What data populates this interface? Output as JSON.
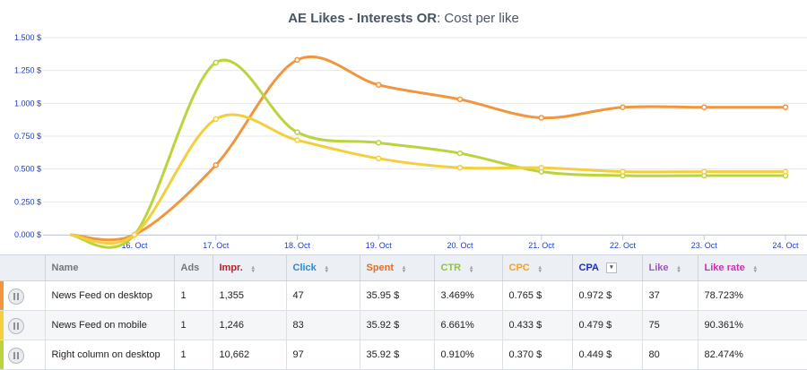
{
  "chart": {
    "title_bold": "AE Likes - Interests OR",
    "title_rest": ": Cost per like"
  },
  "chart_data": {
    "type": "line",
    "title": "AE Likes - Interests OR : Cost per like",
    "x": [
      "16. Oct",
      "17. Oct",
      "18. Oct",
      "19. Oct",
      "20. Oct",
      "21. Oct",
      "22. Oct",
      "23. Oct",
      "24. Oct"
    ],
    "y_ticks": [
      "0.000 $",
      "0.250 $",
      "0.500 $",
      "0.750 $",
      "1.000 $",
      "1.250 $",
      "1.500 $"
    ],
    "ylim": [
      0,
      1.5
    ],
    "grid": true,
    "series": [
      {
        "values": [
          0.0,
          0.53,
          1.33,
          1.14,
          1.03,
          0.89,
          0.97,
          0.97,
          0.97
        ],
        "color": "#f0963e"
      },
      {
        "values": [
          0.0,
          1.31,
          0.78,
          0.7,
          0.62,
          0.48,
          0.45,
          0.45,
          0.45
        ],
        "color": "#b9d43c"
      },
      {
        "values": [
          0.0,
          0.88,
          0.72,
          0.58,
          0.51,
          0.51,
          0.48,
          0.48,
          0.48
        ],
        "color": "#f3cf3e"
      }
    ]
  },
  "table": {
    "headers": [
      {
        "label": "Name",
        "color": "#707780",
        "sort": false
      },
      {
        "label": "Ads",
        "color": "#707780",
        "sort": false
      },
      {
        "label": "Impr.",
        "color": "#b0232a",
        "sort": true
      },
      {
        "label": "Click",
        "color": "#2a8ad8",
        "sort": true
      },
      {
        "label": "Spent",
        "color": "#ee6a22",
        "sort": true
      },
      {
        "label": "CTR",
        "color": "#8fc43a",
        "sort": true
      },
      {
        "label": "CPC",
        "color": "#f3a322",
        "sort": true
      },
      {
        "label": "CPA",
        "color": "#1a2bc8",
        "sort": true,
        "active": true
      },
      {
        "label": "Like",
        "color": "#9b59b6",
        "sort": true
      },
      {
        "label": "Like rate",
        "color": "#cc2fb5",
        "sort": true
      }
    ],
    "rows": [
      {
        "marker_color": "#f0963e",
        "cells": [
          "News Feed on desktop",
          "1",
          "1,355",
          "47",
          "35.95 $",
          "3.469%",
          "0.765 $",
          "0.972 $",
          "37",
          "78.723%"
        ]
      },
      {
        "marker_color": "#f3cf3e",
        "cells": [
          "News Feed on mobile",
          "1",
          "1,246",
          "83",
          "35.92 $",
          "6.661%",
          "0.433 $",
          "0.479 $",
          "75",
          "90.361%"
        ]
      },
      {
        "marker_color": "#b9d43c",
        "cells": [
          "Right column on desktop",
          "1",
          "10,662",
          "97",
          "35.92 $",
          "0.910%",
          "0.370 $",
          "0.449 $",
          "80",
          "82.474%"
        ]
      }
    ]
  }
}
